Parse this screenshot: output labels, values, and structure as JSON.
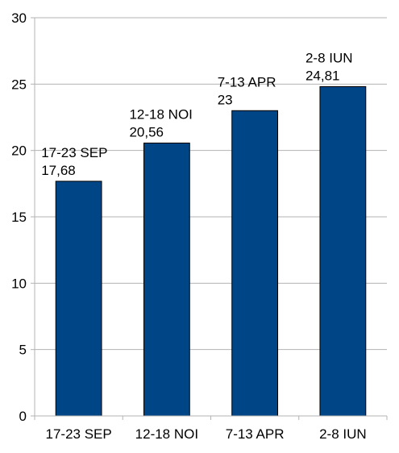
{
  "chart_data": {
    "type": "bar",
    "categories": [
      "17-23 SEP",
      "12-18 NOI",
      "7-13 APR",
      "2-8 IUN"
    ],
    "values": [
      17.68,
      20.56,
      23,
      24.81
    ],
    "data_labels": [
      {
        "category": "17-23 SEP",
        "value": "17,68"
      },
      {
        "category": "12-18 NOI",
        "value": "20,56"
      },
      {
        "category": "7-13 APR",
        "value": "23"
      },
      {
        "category": "2-8 IUN",
        "value": "24,81"
      }
    ],
    "y_ticks": [
      "0",
      "5",
      "10",
      "15",
      "20",
      "25",
      "30"
    ],
    "ylim": [
      0,
      30
    ],
    "grid": true,
    "legend": "none",
    "bar_color": "#004586"
  }
}
